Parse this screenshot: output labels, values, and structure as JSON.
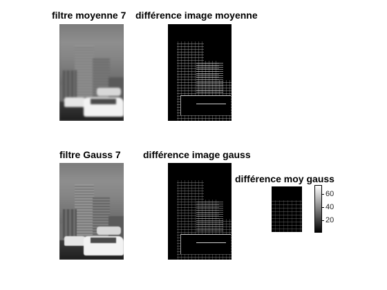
{
  "titles": {
    "moyenne": "filtre moyenne 7",
    "diff_moyenne": "différence image moyenne",
    "gauss": "filtre Gauss 7",
    "diff_gauss": "différence image gauss",
    "diff_moy_gauss": "différence moy gauss"
  },
  "colorbar": {
    "ticks": [
      "60",
      "40",
      "20"
    ]
  }
}
